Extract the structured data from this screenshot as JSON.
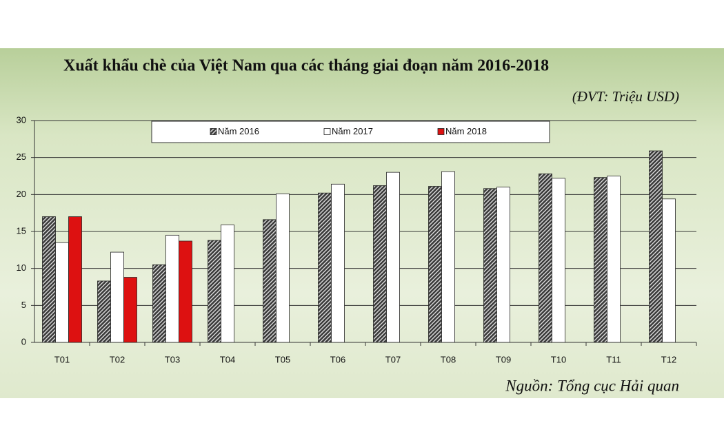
{
  "chart_data": {
    "type": "bar",
    "title": "Xuất khẩu chè của Việt Nam qua các tháng giai đoạn năm 2016-2018",
    "subtitle": "(ĐVT: Triệu USD)",
    "source": "Nguồn: Tổng cục Hải quan",
    "categories": [
      "T01",
      "T02",
      "T03",
      "T04",
      "T05",
      "T06",
      "T07",
      "T08",
      "T09",
      "T10",
      "T11",
      "T12"
    ],
    "series": [
      {
        "name": "Năm 2016",
        "color": "#3a3a3a",
        "hatch": true,
        "values": [
          17.0,
          8.3,
          10.5,
          13.8,
          16.6,
          20.2,
          21.2,
          21.1,
          20.8,
          22.8,
          22.3,
          25.9
        ]
      },
      {
        "name": "Năm 2017",
        "color": "#ffffff",
        "values": [
          13.5,
          12.2,
          14.5,
          15.9,
          20.1,
          21.4,
          23.0,
          23.1,
          21.0,
          22.2,
          22.5,
          19.4
        ]
      },
      {
        "name": "Năm 2018",
        "color": "#dd1111",
        "values": [
          17.0,
          8.8,
          13.7,
          null,
          null,
          null,
          null,
          null,
          null,
          null,
          null,
          null
        ]
      }
    ],
    "ylim": [
      0,
      30
    ],
    "yticks": [
      0,
      5,
      10,
      15,
      20,
      25,
      30
    ],
    "grid": true,
    "legend": "upper center"
  }
}
